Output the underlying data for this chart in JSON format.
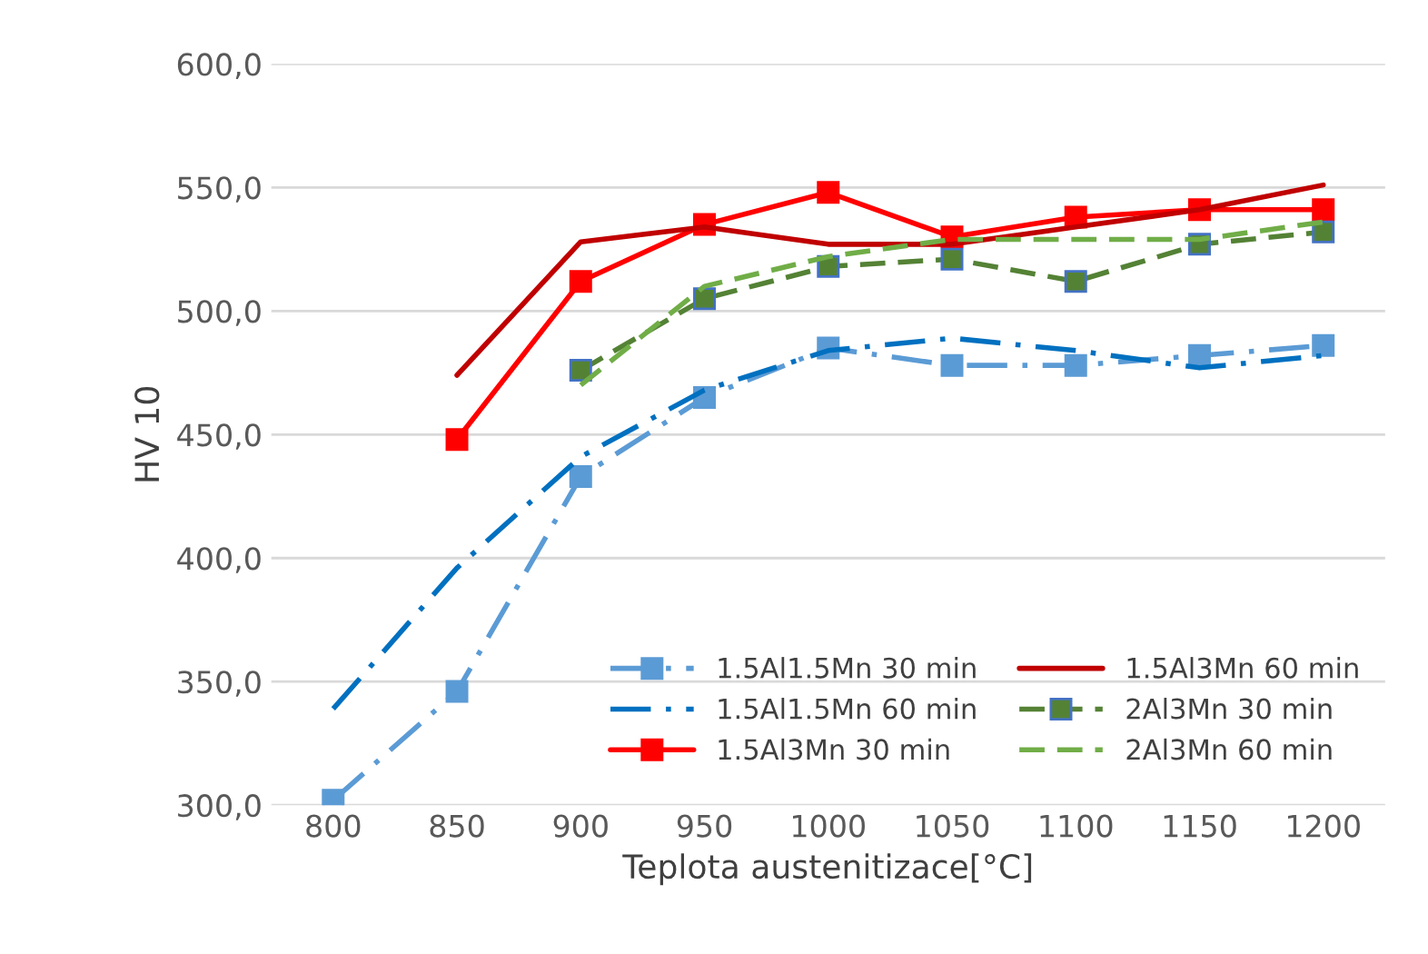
{
  "chart_data": {
    "type": "line",
    "xlabel": "Teplota austenitizace[°C]",
    "ylabel": "HV 10",
    "categories": [
      "800",
      "850",
      "900",
      "950",
      "1000",
      "1050",
      "1100",
      "1150",
      "1200"
    ],
    "ylim": [
      300,
      600
    ],
    "yticks": [
      {
        "value": 300,
        "label": "300,0"
      },
      {
        "value": 350,
        "label": "350,0"
      },
      {
        "value": 400,
        "label": "400,0"
      },
      {
        "value": 450,
        "label": "450,0"
      },
      {
        "value": 500,
        "label": "500,0"
      },
      {
        "value": 550,
        "label": "550,0"
      },
      {
        "value": 600,
        "label": "600,0"
      }
    ],
    "grid": "y",
    "legend": "bottom right",
    "series": [
      {
        "name": "1.5Al1.5Mn 30 min",
        "color": "#5b9bd5",
        "marker": "square",
        "line_style": "dashdot",
        "values": [
          302,
          346,
          433,
          465,
          485,
          478,
          478,
          482,
          486
        ]
      },
      {
        "name": "1.5Al1.5Mn 60 min",
        "color": "#0070c0",
        "marker": "none",
        "line_style": "dashdot",
        "values": [
          339,
          396,
          441,
          468,
          484,
          489,
          484,
          477,
          482
        ]
      },
      {
        "name": "1.5Al3Mn 30 min",
        "color": "#ff0000",
        "marker": "square",
        "line_style": "solid",
        "values": [
          null,
          448,
          512,
          535,
          548,
          530,
          538,
          541,
          541
        ]
      },
      {
        "name": "1.5Al3Mn 60 min",
        "color": "#c00000",
        "marker": "none",
        "line_style": "solid",
        "values": [
          null,
          474,
          528,
          534,
          527,
          527,
          534,
          541,
          551
        ]
      },
      {
        "name": "2Al3Mn 30 min",
        "color": "#548235",
        "marker": "square",
        "line_style": "dashed",
        "values": [
          null,
          null,
          476,
          505,
          518,
          521,
          512,
          527,
          532
        ]
      },
      {
        "name": "2Al3Mn 60 min",
        "color": "#70ad47",
        "marker": "none",
        "line_style": "dashed",
        "values": [
          null,
          null,
          470,
          510,
          522,
          529,
          529,
          529,
          536
        ]
      }
    ]
  }
}
